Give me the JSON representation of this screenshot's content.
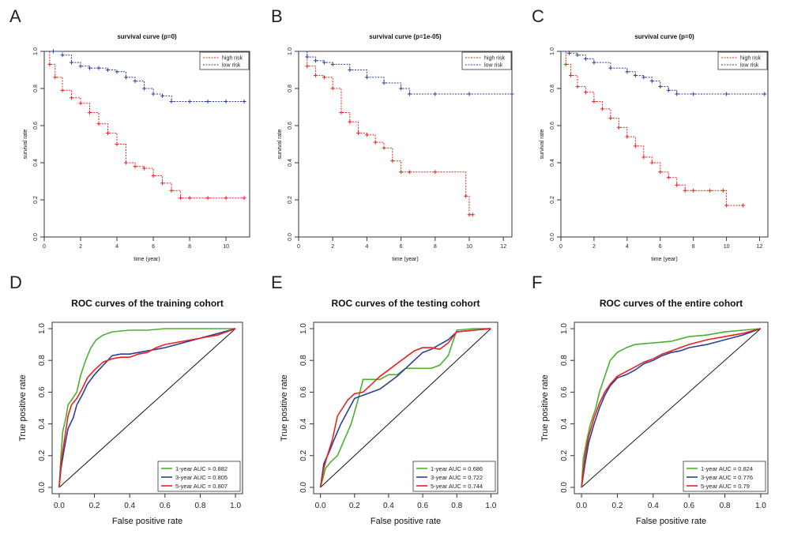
{
  "chart_data": [
    {
      "panel": "A",
      "type": "line",
      "title": "survival curve (p=0)",
      "xlabel": "time (year)",
      "ylabel": "survival rate",
      "xlim": [
        0,
        11.3
      ],
      "ylim": [
        0,
        1
      ],
      "xticks": [
        "0",
        "2",
        "4",
        "6",
        "8",
        "10"
      ],
      "yticks": [
        "0.0",
        "0.2",
        "0.4",
        "0.6",
        "0.8",
        "1.0"
      ],
      "legend": "top-right",
      "series": [
        {
          "name": "high risk",
          "color": "#e8221e",
          "x": [
            0,
            0.3,
            0.6,
            1.0,
            1.5,
            2.0,
            2.5,
            3.0,
            3.5,
            4.0,
            4.5,
            5.0,
            5.5,
            6.0,
            6.5,
            7.0,
            7.5,
            8.0,
            9.0,
            10.0,
            11.0
          ],
          "y": [
            1.0,
            0.93,
            0.86,
            0.79,
            0.75,
            0.72,
            0.67,
            0.61,
            0.56,
            0.5,
            0.4,
            0.38,
            0.37,
            0.33,
            0.29,
            0.25,
            0.21,
            0.21,
            0.21,
            0.21,
            0.21
          ]
        },
        {
          "name": "low risk",
          "color": "#2b3f99",
          "x": [
            0,
            0.5,
            1.0,
            1.5,
            2.0,
            2.5,
            3.0,
            3.5,
            4.0,
            4.5,
            5.0,
            5.5,
            6.0,
            6.5,
            7.0,
            8.0,
            9.0,
            10.0,
            11.0
          ],
          "y": [
            1.0,
            1.0,
            0.98,
            0.94,
            0.92,
            0.91,
            0.91,
            0.9,
            0.89,
            0.86,
            0.84,
            0.8,
            0.77,
            0.76,
            0.73,
            0.73,
            0.73,
            0.73,
            0.73
          ]
        }
      ]
    },
    {
      "panel": "B",
      "type": "line",
      "title": "survival curve (p=1e-05)",
      "xlabel": "time (year)",
      "ylabel": "survival rate",
      "xlim": [
        0,
        12.5
      ],
      "ylim": [
        0,
        1
      ],
      "xticks": [
        "0",
        "2",
        "4",
        "6",
        "8",
        "10",
        "12"
      ],
      "yticks": [
        "0.0",
        "0.2",
        "0.4",
        "0.6",
        "0.8",
        "1.0"
      ],
      "legend": "top-right",
      "series": [
        {
          "name": "high risk",
          "color": "#e8221e",
          "x": [
            0,
            0.5,
            1.0,
            1.5,
            2.0,
            2.5,
            3.0,
            3.5,
            4.0,
            4.5,
            5.0,
            5.5,
            6.0,
            6.5,
            8.0,
            9.8,
            10.0,
            10.2
          ],
          "y": [
            1.0,
            0.92,
            0.87,
            0.86,
            0.8,
            0.67,
            0.62,
            0.56,
            0.55,
            0.51,
            0.48,
            0.41,
            0.35,
            0.35,
            0.35,
            0.22,
            0.12,
            0.12
          ]
        },
        {
          "name": "low risk",
          "color": "#2b3f99",
          "x": [
            0,
            0.5,
            1.0,
            1.5,
            2.0,
            3.0,
            4.0,
            5.0,
            6.0,
            6.5,
            8.0,
            10.0,
            12.5
          ],
          "y": [
            1.0,
            0.97,
            0.95,
            0.94,
            0.93,
            0.9,
            0.86,
            0.83,
            0.8,
            0.77,
            0.77,
            0.77,
            0.77
          ]
        }
      ]
    },
    {
      "panel": "C",
      "type": "line",
      "title": "survival curve (p=0)",
      "xlabel": "time (year)",
      "ylabel": "survival rate",
      "xlim": [
        0,
        12.5
      ],
      "ylim": [
        0,
        1
      ],
      "xticks": [
        "0",
        "2",
        "4",
        "6",
        "8",
        "10",
        "12"
      ],
      "yticks": [
        "0.0",
        "0.2",
        "0.4",
        "0.6",
        "0.8",
        "1.0"
      ],
      "legend": "top-right",
      "series": [
        {
          "name": "high risk",
          "color": "#e8221e",
          "x": [
            0,
            0.3,
            0.6,
            1.0,
            1.5,
            2.0,
            2.5,
            3.0,
            3.5,
            4.0,
            4.5,
            5.0,
            5.5,
            6.0,
            6.5,
            7.0,
            7.5,
            8.0,
            9.0,
            9.8,
            10.0,
            11.0
          ],
          "y": [
            1.0,
            0.93,
            0.87,
            0.81,
            0.78,
            0.73,
            0.69,
            0.64,
            0.59,
            0.54,
            0.49,
            0.43,
            0.4,
            0.35,
            0.32,
            0.28,
            0.25,
            0.25,
            0.25,
            0.25,
            0.17,
            0.17
          ]
        },
        {
          "name": "low risk",
          "color": "#2b3f99",
          "x": [
            0,
            0.5,
            1.0,
            1.5,
            2.0,
            3.0,
            4.0,
            4.5,
            5.0,
            5.5,
            6.0,
            6.5,
            7.0,
            8.0,
            10.0,
            12.3
          ],
          "y": [
            1.0,
            0.99,
            0.98,
            0.96,
            0.94,
            0.91,
            0.89,
            0.87,
            0.86,
            0.84,
            0.81,
            0.79,
            0.77,
            0.77,
            0.77,
            0.77
          ]
        }
      ]
    },
    {
      "panel": "D",
      "type": "line",
      "title": "ROC curves of the training cohort",
      "xlabel": "False positive rate",
      "ylabel": "True positive rate",
      "xlim": [
        -0.04,
        1.04
      ],
      "ylim": [
        -0.04,
        1.04
      ],
      "xticks": [
        "0.0",
        "0.2",
        "0.4",
        "0.6",
        "0.8",
        "1.0"
      ],
      "yticks": [
        "0.0",
        "0.2",
        "0.4",
        "0.6",
        "0.8",
        "1.0"
      ],
      "legend": "bottom-right",
      "series": [
        {
          "name": "1-year AUC = 0.882",
          "color": "#4daf2f",
          "x": [
            0,
            0.01,
            0.02,
            0.04,
            0.05,
            0.07,
            0.1,
            0.12,
            0.15,
            0.18,
            0.21,
            0.25,
            0.3,
            0.4,
            0.5,
            0.6,
            0.7,
            0.8,
            0.9,
            1.0
          ],
          "y": [
            0,
            0.2,
            0.35,
            0.45,
            0.52,
            0.55,
            0.6,
            0.7,
            0.8,
            0.88,
            0.93,
            0.96,
            0.98,
            0.99,
            0.99,
            1.0,
            1.0,
            1.0,
            1.0,
            1.0
          ]
        },
        {
          "name": "3-year AUC = 0.805",
          "color": "#2b3f99",
          "x": [
            0,
            0.01,
            0.03,
            0.05,
            0.08,
            0.1,
            0.13,
            0.16,
            0.2,
            0.25,
            0.3,
            0.35,
            0.4,
            0.45,
            0.5,
            0.55,
            0.6,
            0.7,
            0.8,
            0.9,
            1.0
          ],
          "y": [
            0,
            0.12,
            0.25,
            0.37,
            0.44,
            0.52,
            0.58,
            0.65,
            0.71,
            0.77,
            0.83,
            0.84,
            0.84,
            0.85,
            0.86,
            0.87,
            0.88,
            0.91,
            0.94,
            0.97,
            1.0
          ]
        },
        {
          "name": "5-year AUC = 0.807",
          "color": "#e8221e",
          "x": [
            0,
            0.01,
            0.03,
            0.05,
            0.07,
            0.1,
            0.13,
            0.16,
            0.2,
            0.25,
            0.3,
            0.35,
            0.4,
            0.45,
            0.5,
            0.55,
            0.6,
            0.7,
            0.8,
            0.9,
            1.0
          ],
          "y": [
            0,
            0.15,
            0.3,
            0.45,
            0.52,
            0.56,
            0.62,
            0.69,
            0.74,
            0.79,
            0.81,
            0.82,
            0.82,
            0.84,
            0.85,
            0.88,
            0.9,
            0.92,
            0.94,
            0.96,
            1.0
          ]
        }
      ]
    },
    {
      "panel": "E",
      "type": "line",
      "title": "ROC curves of the testing cohort",
      "xlabel": "False positive rate",
      "ylabel": "True positive rate",
      "xlim": [
        -0.04,
        1.04
      ],
      "ylim": [
        -0.04,
        1.04
      ],
      "xticks": [
        "0.0",
        "0.2",
        "0.4",
        "0.6",
        "0.8",
        "1.0"
      ],
      "yticks": [
        "0.0",
        "0.2",
        "0.4",
        "0.6",
        "0.8",
        "1.0"
      ],
      "legend": "bottom-right",
      "series": [
        {
          "name": "1-year AUC = 0.686",
          "color": "#4daf2f",
          "x": [
            0,
            0.03,
            0.06,
            0.1,
            0.14,
            0.18,
            0.22,
            0.25,
            0.3,
            0.35,
            0.4,
            0.45,
            0.5,
            0.55,
            0.6,
            0.65,
            0.7,
            0.75,
            0.8,
            0.9,
            1.0
          ],
          "y": [
            0,
            0.12,
            0.16,
            0.2,
            0.3,
            0.4,
            0.55,
            0.68,
            0.68,
            0.68,
            0.71,
            0.71,
            0.75,
            0.75,
            0.75,
            0.75,
            0.77,
            0.83,
            0.99,
            1.0,
            1.0
          ]
        },
        {
          "name": "3-year AUC = 0.722",
          "color": "#2b3f99",
          "x": [
            0,
            0.02,
            0.05,
            0.08,
            0.12,
            0.16,
            0.2,
            0.25,
            0.3,
            0.35,
            0.4,
            0.45,
            0.5,
            0.55,
            0.6,
            0.65,
            0.7,
            0.75,
            0.8,
            0.9,
            1.0
          ],
          "y": [
            0,
            0.15,
            0.22,
            0.3,
            0.4,
            0.48,
            0.56,
            0.58,
            0.6,
            0.62,
            0.66,
            0.7,
            0.75,
            0.8,
            0.85,
            0.87,
            0.9,
            0.93,
            0.98,
            0.99,
            1.0
          ]
        },
        {
          "name": "5-year AUC = 0.744",
          "color": "#e8221e",
          "x": [
            0,
            0.02,
            0.04,
            0.07,
            0.1,
            0.13,
            0.16,
            0.2,
            0.25,
            0.3,
            0.35,
            0.4,
            0.45,
            0.5,
            0.55,
            0.6,
            0.65,
            0.7,
            0.75,
            0.8,
            0.9,
            1.0
          ],
          "y": [
            0,
            0.12,
            0.2,
            0.3,
            0.45,
            0.5,
            0.55,
            0.59,
            0.6,
            0.65,
            0.7,
            0.74,
            0.78,
            0.82,
            0.86,
            0.88,
            0.88,
            0.87,
            0.91,
            0.98,
            0.99,
            1.0
          ]
        }
      ]
    },
    {
      "panel": "F",
      "type": "line",
      "title": "ROC curves of the entire cohort",
      "xlabel": "False positive rate",
      "ylabel": "True positive rate",
      "xlim": [
        -0.04,
        1.04
      ],
      "ylim": [
        -0.04,
        1.04
      ],
      "xticks": [
        "0.0",
        "0.2",
        "0.4",
        "0.6",
        "0.8",
        "1.0"
      ],
      "yticks": [
        "0.0",
        "0.2",
        "0.4",
        "0.6",
        "0.8",
        "1.0"
      ],
      "legend": "bottom-right",
      "series": [
        {
          "name": "1-year AUC = 0.824",
          "color": "#4daf2f",
          "x": [
            0,
            0.01,
            0.03,
            0.05,
            0.08,
            0.1,
            0.13,
            0.16,
            0.2,
            0.25,
            0.3,
            0.4,
            0.5,
            0.6,
            0.7,
            0.8,
            0.9,
            1.0
          ],
          "y": [
            0,
            0.18,
            0.3,
            0.4,
            0.5,
            0.6,
            0.7,
            0.8,
            0.85,
            0.88,
            0.9,
            0.91,
            0.92,
            0.95,
            0.96,
            0.98,
            0.99,
            1.0
          ]
        },
        {
          "name": "3-year AUC = 0.776",
          "color": "#2b3f99",
          "x": [
            0,
            0.02,
            0.04,
            0.07,
            0.1,
            0.13,
            0.16,
            0.2,
            0.25,
            0.3,
            0.35,
            0.4,
            0.45,
            0.5,
            0.55,
            0.6,
            0.7,
            0.8,
            0.9,
            1.0
          ],
          "y": [
            0,
            0.15,
            0.28,
            0.4,
            0.5,
            0.58,
            0.64,
            0.69,
            0.71,
            0.74,
            0.78,
            0.8,
            0.83,
            0.85,
            0.86,
            0.88,
            0.9,
            0.93,
            0.96,
            1.0
          ]
        },
        {
          "name": "5-year AUC = 0.79",
          "color": "#e8221e",
          "x": [
            0,
            0.02,
            0.04,
            0.07,
            0.1,
            0.13,
            0.16,
            0.2,
            0.25,
            0.3,
            0.35,
            0.4,
            0.45,
            0.5,
            0.55,
            0.6,
            0.7,
            0.8,
            0.9,
            1.0
          ],
          "y": [
            0,
            0.2,
            0.32,
            0.44,
            0.53,
            0.6,
            0.65,
            0.7,
            0.73,
            0.76,
            0.79,
            0.81,
            0.84,
            0.86,
            0.88,
            0.9,
            0.93,
            0.95,
            0.97,
            1.0
          ]
        }
      ]
    }
  ]
}
